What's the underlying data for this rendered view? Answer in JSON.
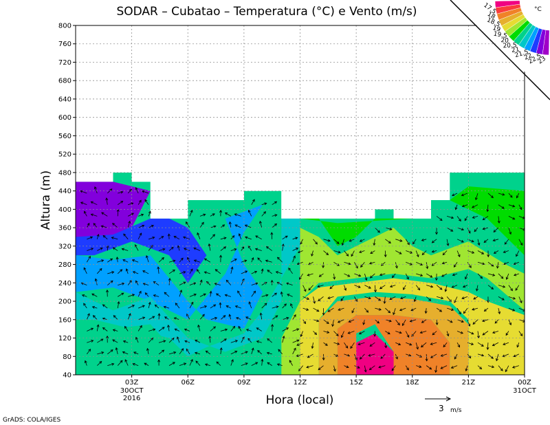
{
  "chart_data": {
    "type": "heatmap",
    "title": "SODAR  –  Cubatao  –  Temperatura (°C) e Vento (m/s)",
    "xlabel": "Hora (local)",
    "ylabel": "Altura (m)",
    "ylim": [
      40,
      800
    ],
    "xlim": [
      0,
      24
    ],
    "y_ticks": [
      40,
      80,
      120,
      160,
      200,
      240,
      280,
      320,
      360,
      400,
      440,
      480,
      520,
      560,
      600,
      640,
      680,
      720,
      760,
      800
    ],
    "x_ticks": [
      {
        "x": 3,
        "label": "03Z",
        "sub": [
          "30OCT",
          "2016"
        ]
      },
      {
        "x": 6,
        "label": "06Z",
        "sub": []
      },
      {
        "x": 9,
        "label": "09Z",
        "sub": []
      },
      {
        "x": 12,
        "label": "12Z",
        "sub": []
      },
      {
        "x": 15,
        "label": "15Z",
        "sub": []
      },
      {
        "x": 18,
        "label": "18Z",
        "sub": []
      },
      {
        "x": 21,
        "label": "21Z",
        "sub": []
      },
      {
        "x": 24,
        "label": "00Z",
        "sub": [
          "31OCT"
        ]
      }
    ],
    "grid": true,
    "colorbar": {
      "unit": "°C",
      "labels": [
        "17.5",
        "18",
        "18.5",
        "19",
        "19.5",
        "20",
        "20.5",
        "21",
        "21.5",
        "22",
        "22.5",
        "23"
      ],
      "colors": [
        "#a000c8",
        "#8200dc",
        "#1e3cff",
        "#00a0ff",
        "#00c8c8",
        "#00d28c",
        "#00dc00",
        "#a0e632",
        "#e6dc32",
        "#e6af2d",
        "#f08228",
        "#fa3c3c",
        "#f00082"
      ]
    },
    "data_top": [
      {
        "t": 0.0,
        "h": 460
      },
      {
        "t": 2.0,
        "h": 480
      },
      {
        "t": 3.0,
        "h": 460
      },
      {
        "t": 4.0,
        "h": 380
      },
      {
        "t": 6.0,
        "h": 420
      },
      {
        "t": 9.0,
        "h": 440
      },
      {
        "t": 11.0,
        "h": 380
      },
      {
        "t": 16.0,
        "h": 400
      },
      {
        "t": 17.0,
        "h": 380
      },
      {
        "t": 19.0,
        "h": 420
      },
      {
        "t": 20.0,
        "h": 480
      },
      {
        "t": 24.0,
        "h": 480
      }
    ],
    "temperature_bands": [
      {
        "level": "17.5",
        "points": [
          [
            0,
            460
          ],
          [
            2,
            460
          ],
          [
            4,
            440
          ],
          [
            3,
            360
          ],
          [
            1,
            330
          ],
          [
            0,
            340
          ]
        ]
      },
      {
        "level": "18",
        "points": [
          [
            0,
            340
          ],
          [
            2,
            345
          ],
          [
            4,
            380
          ],
          [
            5,
            380
          ],
          [
            6,
            360
          ],
          [
            7,
            300
          ],
          [
            6,
            240
          ],
          [
            5,
            300
          ],
          [
            3,
            330
          ],
          [
            1,
            300
          ],
          [
            0,
            300
          ]
        ]
      },
      {
        "level": "18.5",
        "points": [
          [
            0,
            300
          ],
          [
            2,
            290
          ],
          [
            4,
            300
          ],
          [
            6,
            200
          ],
          [
            7,
            160
          ],
          [
            9,
            140
          ],
          [
            10,
            220
          ],
          [
            9,
            280
          ],
          [
            8,
            380
          ],
          [
            10,
            410
          ],
          [
            9,
            350
          ],
          [
            8,
            260
          ],
          [
            6,
            160
          ],
          [
            4,
            200
          ],
          [
            2,
            230
          ],
          [
            0,
            220
          ]
        ]
      },
      {
        "level": "19",
        "points": [
          [
            0,
            220
          ],
          [
            2,
            180
          ],
          [
            4,
            210
          ],
          [
            6,
            120
          ],
          [
            8,
            90
          ],
          [
            10,
            120
          ],
          [
            11,
            200
          ],
          [
            11,
            380
          ],
          [
            12,
            380
          ],
          [
            12,
            320
          ],
          [
            11,
            250
          ],
          [
            10,
            180
          ],
          [
            9,
            130
          ],
          [
            7,
            100
          ],
          [
            6,
            80
          ],
          [
            5,
            120
          ],
          [
            3,
            140
          ],
          [
            1,
            160
          ],
          [
            0,
            160
          ]
        ]
      },
      {
        "level": "19.5",
        "points": [
          [
            0,
            160
          ],
          [
            2,
            140
          ],
          [
            4,
            150
          ],
          [
            6,
            60
          ],
          [
            10,
            60
          ],
          [
            11,
            100
          ],
          [
            12,
            140
          ],
          [
            12,
            80
          ],
          [
            11,
            40
          ],
          [
            0,
            40
          ]
        ]
      },
      {
        "level": "20",
        "points": [
          [
            11,
            380
          ],
          [
            13,
            380
          ],
          [
            14,
            320
          ],
          [
            15,
            340
          ],
          [
            16,
            380
          ],
          [
            17,
            380
          ],
          [
            19,
            400
          ],
          [
            20,
            420
          ],
          [
            22,
            380
          ],
          [
            24,
            300
          ],
          [
            24,
            440
          ],
          [
            21,
            450
          ],
          [
            20,
            420
          ],
          [
            18,
            380
          ],
          [
            14,
            370
          ],
          [
            12,
            380
          ]
        ]
      },
      {
        "level": "20.5",
        "points": [
          [
            12,
            360
          ],
          [
            13,
            340
          ],
          [
            14,
            300
          ],
          [
            15,
            320
          ],
          [
            17,
            360
          ],
          [
            18,
            320
          ],
          [
            19,
            300
          ],
          [
            21,
            330
          ],
          [
            23,
            280
          ],
          [
            24,
            260
          ],
          [
            24,
            180
          ],
          [
            22,
            250
          ],
          [
            21,
            270
          ],
          [
            19,
            250
          ],
          [
            17,
            260
          ],
          [
            15,
            250
          ],
          [
            13,
            240
          ],
          [
            12,
            200
          ],
          [
            11,
            120
          ],
          [
            11,
            40
          ],
          [
            13,
            40
          ],
          [
            12,
            100
          ],
          [
            12,
            300
          ]
        ]
      },
      {
        "level": "21",
        "points": [
          [
            12,
            200
          ],
          [
            13,
            230
          ],
          [
            15,
            240
          ],
          [
            17,
            250
          ],
          [
            19,
            240
          ],
          [
            21,
            220
          ],
          [
            22,
            200
          ],
          [
            24,
            170
          ],
          [
            24,
            40
          ],
          [
            21,
            40
          ],
          [
            21,
            160
          ],
          [
            20,
            200
          ],
          [
            18,
            215
          ],
          [
            16,
            220
          ],
          [
            14,
            210
          ],
          [
            13,
            160
          ],
          [
            13,
            40
          ],
          [
            12,
            40
          ]
        ]
      },
      {
        "level": "21.5",
        "points": [
          [
            13,
            160
          ],
          [
            14,
            200
          ],
          [
            16,
            210
          ],
          [
            18,
            205
          ],
          [
            20,
            190
          ],
          [
            21,
            150
          ],
          [
            21,
            40
          ],
          [
            20,
            40
          ],
          [
            20,
            110
          ],
          [
            19,
            160
          ],
          [
            17,
            170
          ],
          [
            15,
            170
          ],
          [
            14,
            140
          ],
          [
            14,
            40
          ],
          [
            13,
            40
          ]
        ]
      },
      {
        "level": "22",
        "points": [
          [
            14,
            140
          ],
          [
            15,
            170
          ],
          [
            17,
            170
          ],
          [
            19,
            160
          ],
          [
            20,
            110
          ],
          [
            20,
            40
          ],
          [
            17,
            40
          ],
          [
            17,
            90
          ],
          [
            16,
            150
          ],
          [
            15,
            130
          ],
          [
            15,
            40
          ],
          [
            14,
            40
          ]
        ]
      },
      {
        "level": "23",
        "points": [
          [
            15,
            40
          ],
          [
            15,
            110
          ],
          [
            16,
            130
          ],
          [
            17,
            90
          ],
          [
            17,
            40
          ]
        ]
      }
    ],
    "wind_reference": {
      "value": "3",
      "unit": "m/s"
    }
  },
  "footer": {
    "credit": "GrADS: COLA/IGES"
  }
}
